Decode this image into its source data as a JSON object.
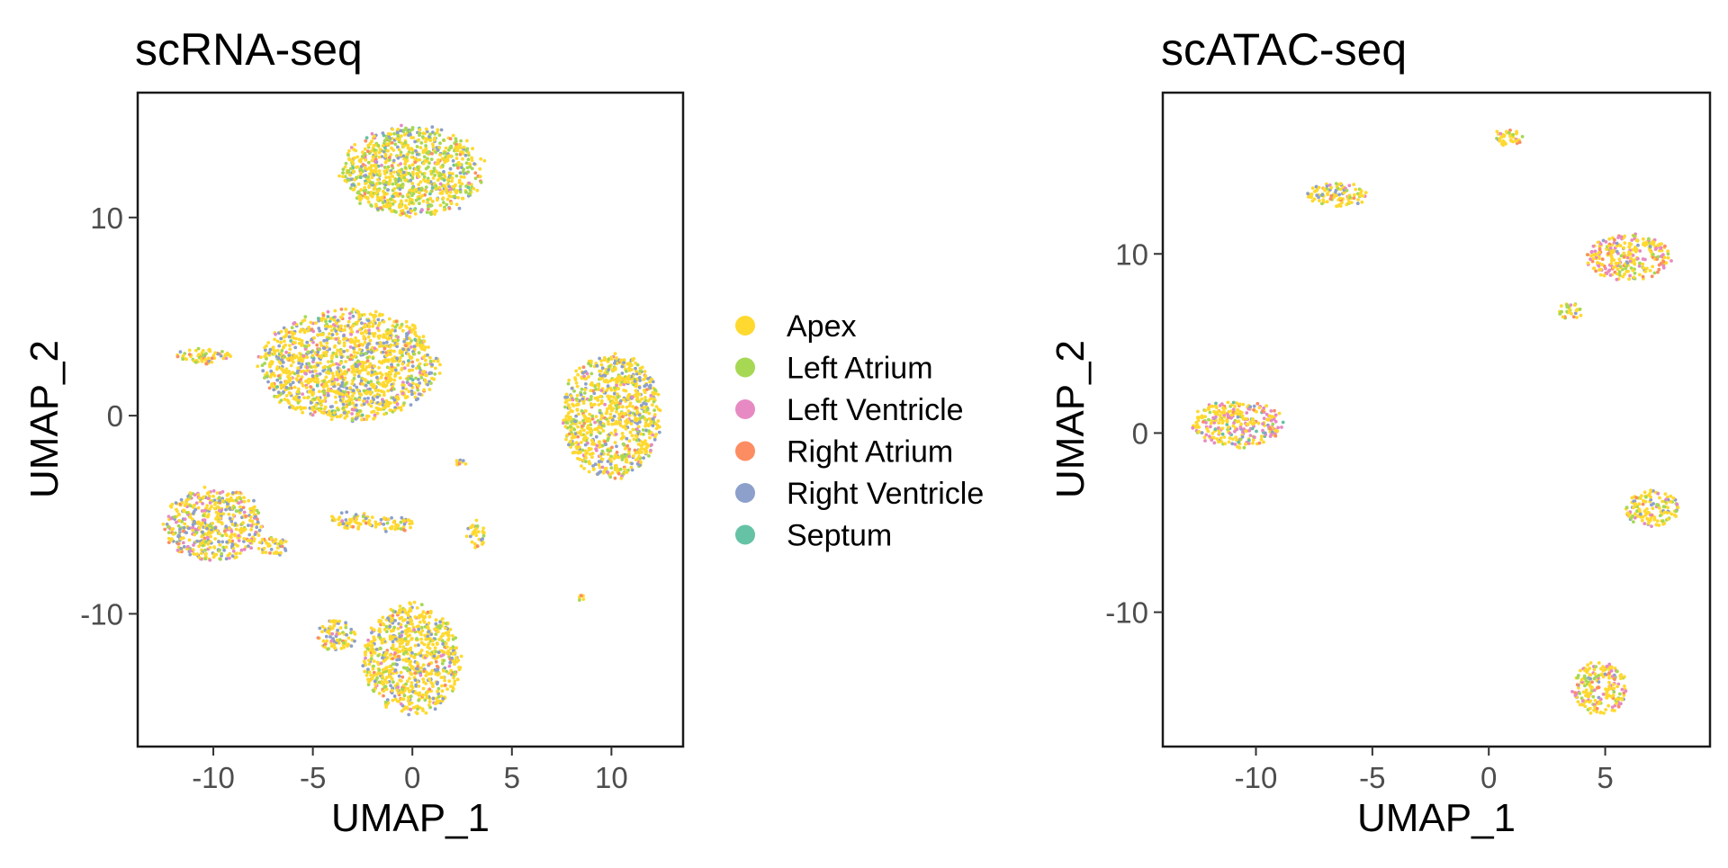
{
  "chart_data": [
    {
      "type": "scatter",
      "title": "scRNA-seq",
      "xlabel": "UMAP_1",
      "ylabel": "UMAP_2",
      "xlim": [
        -13.8,
        13.6
      ],
      "ylim": [
        -16.7,
        16.3
      ],
      "xticks": [
        -10,
        -5,
        0,
        5,
        10
      ],
      "yticks": [
        -10,
        0,
        10
      ],
      "xtick_labels": [
        "-10",
        "-5",
        "0",
        "5",
        "10"
      ],
      "ytick_labels": [
        "-10",
        "0",
        "10"
      ],
      "grid": false,
      "clusters": [
        {
          "cx": 0.0,
          "cy": 12.3,
          "rx": 3.6,
          "ry": 2.3,
          "mix": [
            0.55,
            0.25,
            0.02,
            0.05,
            0.1,
            0.03
          ]
        },
        {
          "cx": -3.2,
          "cy": 2.5,
          "rx": 4.5,
          "ry": 2.8,
          "mix": [
            0.6,
            0.1,
            0.06,
            0.04,
            0.18,
            0.02
          ]
        },
        {
          "cx": -10.5,
          "cy": 3.0,
          "rx": 1.5,
          "ry": 0.4,
          "mix": [
            0.6,
            0.1,
            0.05,
            0.1,
            0.15,
            0.0
          ]
        },
        {
          "cx": 10.0,
          "cy": 0.0,
          "rx": 2.5,
          "ry": 3.2,
          "mix": [
            0.6,
            0.15,
            0.05,
            0.03,
            0.17,
            0.0
          ]
        },
        {
          "cx": -10.0,
          "cy": -5.5,
          "rx": 2.5,
          "ry": 1.9,
          "mix": [
            0.55,
            0.1,
            0.12,
            0.05,
            0.18,
            0.0
          ]
        },
        {
          "cx": -7.0,
          "cy": -6.6,
          "rx": 0.8,
          "ry": 0.5,
          "mix": [
            0.6,
            0.1,
            0.1,
            0.05,
            0.15,
            0.0
          ]
        },
        {
          "cx": -3.0,
          "cy": -5.3,
          "rx": 1.2,
          "ry": 0.45,
          "mix": [
            0.65,
            0.1,
            0.05,
            0.05,
            0.15,
            0.0
          ]
        },
        {
          "cx": -1.0,
          "cy": -5.5,
          "rx": 1.1,
          "ry": 0.4,
          "mix": [
            0.65,
            0.1,
            0.05,
            0.05,
            0.15,
            0.0
          ]
        },
        {
          "cx": 3.2,
          "cy": -6.0,
          "rx": 0.5,
          "ry": 0.7,
          "mix": [
            0.65,
            0.1,
            0.05,
            0.05,
            0.15,
            0.0
          ]
        },
        {
          "cx": 2.4,
          "cy": -2.4,
          "rx": 0.3,
          "ry": 0.3,
          "mix": [
            0.7,
            0.1,
            0.0,
            0.1,
            0.1,
            0.0
          ]
        },
        {
          "cx": 8.5,
          "cy": -9.2,
          "rx": 0.15,
          "ry": 0.15,
          "mix": [
            0.7,
            0.1,
            0.0,
            0.1,
            0.1,
            0.0
          ]
        },
        {
          "cx": 0.0,
          "cy": -12.3,
          "rx": 2.5,
          "ry": 2.8,
          "mix": [
            0.65,
            0.12,
            0.05,
            0.03,
            0.15,
            0.0
          ]
        },
        {
          "cx": -3.8,
          "cy": -11.1,
          "rx": 1.0,
          "ry": 0.8,
          "mix": [
            0.6,
            0.1,
            0.05,
            0.05,
            0.2,
            0.0
          ]
        }
      ]
    },
    {
      "type": "scatter",
      "title": "scATAC-seq",
      "xlabel": "UMAP_1",
      "ylabel": "UMAP_2",
      "xlim": [
        -14.0,
        9.5
      ],
      "ylim": [
        -17.5,
        19.0
      ],
      "xticks": [
        -10,
        -5,
        0,
        5
      ],
      "yticks": [
        -10,
        0,
        10
      ],
      "xtick_labels": [
        "-10",
        "-5",
        "0",
        "5"
      ],
      "ytick_labels": [
        "-10",
        "0",
        "10"
      ],
      "grid": false,
      "clusters": [
        {
          "cx": 0.8,
          "cy": 16.5,
          "rx": 0.7,
          "ry": 0.5,
          "mix": [
            0.7,
            0.05,
            0.1,
            0.1,
            0.05,
            0.0
          ]
        },
        {
          "cx": -6.5,
          "cy": 13.3,
          "rx": 1.3,
          "ry": 0.7,
          "mix": [
            0.7,
            0.1,
            0.05,
            0.05,
            0.1,
            0.0
          ]
        },
        {
          "cx": 6.0,
          "cy": 9.8,
          "rx": 1.8,
          "ry": 1.3,
          "mix": [
            0.55,
            0.1,
            0.2,
            0.1,
            0.05,
            0.0
          ]
        },
        {
          "cx": 3.5,
          "cy": 6.8,
          "rx": 0.5,
          "ry": 0.5,
          "mix": [
            0.5,
            0.3,
            0.05,
            0.1,
            0.05,
            0.0
          ]
        },
        {
          "cx": -10.8,
          "cy": 0.5,
          "rx": 2.0,
          "ry": 1.3,
          "mix": [
            0.5,
            0.05,
            0.3,
            0.05,
            0.05,
            0.05
          ]
        },
        {
          "cx": 7.0,
          "cy": -4.2,
          "rx": 1.2,
          "ry": 1.0,
          "mix": [
            0.6,
            0.15,
            0.1,
            0.05,
            0.1,
            0.0
          ]
        },
        {
          "cx": 4.8,
          "cy": -14.2,
          "rx": 1.2,
          "ry": 1.5,
          "mix": [
            0.6,
            0.12,
            0.18,
            0.05,
            0.05,
            0.0
          ]
        }
      ]
    }
  ],
  "legend": {
    "placement": "center-between-panels",
    "items": [
      {
        "label": "Apex",
        "color": "#FFD92F"
      },
      {
        "label": "Left Atrium",
        "color": "#A6D854"
      },
      {
        "label": "Left Ventricle",
        "color": "#E78AC3"
      },
      {
        "label": "Right Atrium",
        "color": "#FC8D62"
      },
      {
        "label": "Right Ventricle",
        "color": "#8DA0CB"
      },
      {
        "label": "Septum",
        "color": "#66C2A5"
      }
    ]
  }
}
